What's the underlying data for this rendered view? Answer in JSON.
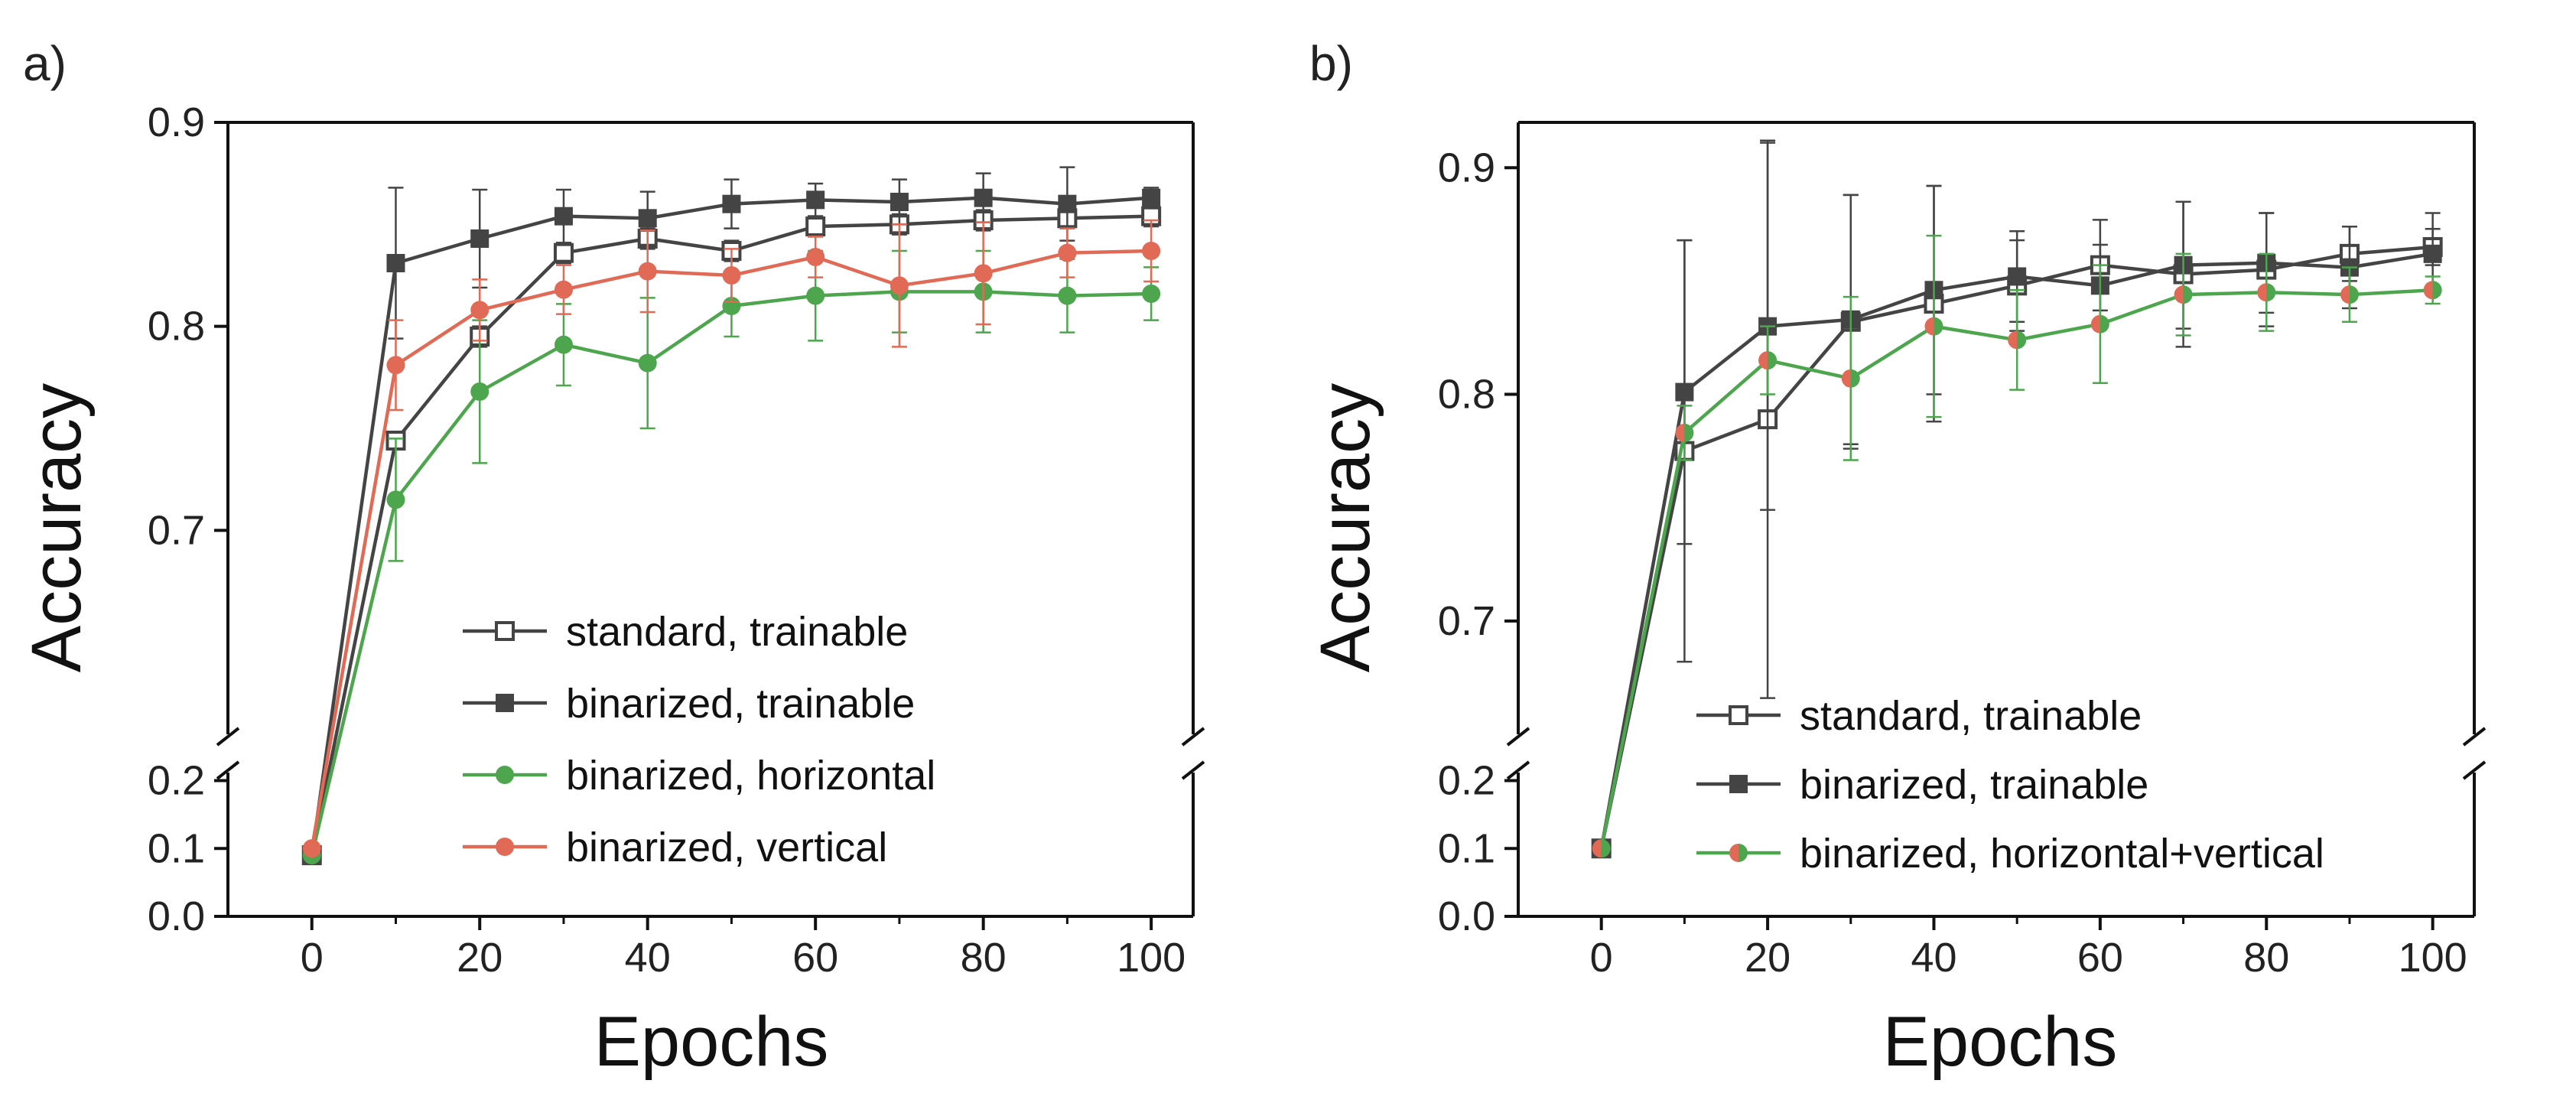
{
  "colors": {
    "standard_trainable": "#444444",
    "binarized_trainable": "#444444",
    "binarized_horizontal": "#4da64d",
    "binarized_vertical": "#e06a55",
    "axis": "#111111"
  },
  "chart_data": [
    {
      "panel": "a)",
      "type": "line",
      "xlabel": "Epochs",
      "ylabel": "Accuracy",
      "xlim": [
        -10,
        105
      ],
      "x_ticks": [
        0,
        20,
        40,
        60,
        80,
        100
      ],
      "y_axis_break": {
        "lower_range": [
          0.0,
          0.24
        ],
        "upper_range": [
          0.6,
          0.9
        ],
        "lower_ticks": [
          0.0,
          0.1,
          0.2
        ],
        "upper_ticks": [
          0.7,
          0.8,
          0.9
        ]
      },
      "legend_position": "lower-right",
      "x": [
        0,
        10,
        20,
        30,
        40,
        50,
        60,
        70,
        80,
        90,
        100
      ],
      "series": [
        {
          "name": "standard, trainable",
          "color": "#444444",
          "marker": "open-square",
          "values": [
            0.09,
            0.744,
            0.795,
            0.836,
            0.843,
            0.837,
            0.849,
            0.85,
            0.852,
            0.853,
            0.854
          ],
          "errors": [
            0.0,
            0.0,
            0.005,
            0.005,
            0.005,
            0.005,
            0.005,
            0.005,
            0.005,
            0.005,
            0.005
          ]
        },
        {
          "name": "binarized, trainable",
          "color": "#444444",
          "marker": "filled-square",
          "values": [
            0.09,
            0.831,
            0.843,
            0.854,
            0.853,
            0.86,
            0.862,
            0.861,
            0.863,
            0.86,
            0.863
          ],
          "errors": [
            0.0,
            0.037,
            0.024,
            0.013,
            0.013,
            0.012,
            0.008,
            0.011,
            0.012,
            0.018,
            0.005
          ]
        },
        {
          "name": "binarized, horizontal",
          "color": "#4da64d",
          "marker": "filled-circle",
          "values": [
            0.09,
            0.715,
            0.768,
            0.791,
            0.782,
            0.81,
            0.815,
            0.817,
            0.817,
            0.815,
            0.816
          ],
          "errors": [
            0.0,
            0.03,
            0.035,
            0.02,
            0.032,
            0.015,
            0.022,
            0.02,
            0.02,
            0.018,
            0.013
          ]
        },
        {
          "name": "binarized, vertical",
          "color": "#e06a55",
          "marker": "filled-circle",
          "values": [
            0.1,
            0.781,
            0.808,
            0.818,
            0.827,
            0.825,
            0.834,
            0.82,
            0.826,
            0.836,
            0.837
          ],
          "errors": [
            0.0,
            0.022,
            0.015,
            0.012,
            0.02,
            0.013,
            0.01,
            0.03,
            0.025,
            0.012,
            0.015
          ]
        }
      ]
    },
    {
      "panel": "b)",
      "type": "line",
      "xlabel": "Epochs",
      "ylabel": "Accuracy",
      "xlim": [
        -10,
        105
      ],
      "x_ticks": [
        0,
        20,
        40,
        60,
        80,
        100
      ],
      "y_axis_break": {
        "lower_range": [
          0.0,
          0.24
        ],
        "upper_range": [
          0.65,
          0.92
        ],
        "lower_ticks": [
          0.0,
          0.1,
          0.2
        ],
        "upper_ticks": [
          0.7,
          0.8,
          0.9
        ]
      },
      "legend_position": "lower-right",
      "x": [
        0,
        10,
        20,
        30,
        40,
        50,
        60,
        70,
        80,
        90,
        100
      ],
      "series": [
        {
          "name": "standard, trainable",
          "color": "#444444",
          "marker": "open-square",
          "values": [
            0.1,
            0.775,
            0.789,
            0.832,
            0.84,
            0.848,
            0.857,
            0.853,
            0.855,
            0.862,
            0.865
          ],
          "errors": [
            0.0,
            0.093,
            0.123,
            0.056,
            0.052,
            0.02,
            0.02,
            0.032,
            0.025,
            0.012,
            0.008
          ]
        },
        {
          "name": "binarized, trainable",
          "color": "#444444",
          "marker": "filled-square",
          "values": [
            0.1,
            0.801,
            0.83,
            0.833,
            0.846,
            0.852,
            0.848,
            0.857,
            0.858,
            0.856,
            0.862
          ],
          "errors": [
            0.0,
            0.067,
            0.081,
            0.055,
            0.046,
            0.02,
            0.018,
            0.028,
            0.022,
            0.018,
            0.018
          ]
        },
        {
          "name": "binarized, horizontal+vertical",
          "color": "#4da64d",
          "color2": "#e06a55",
          "marker": "half-circle",
          "values": [
            0.1,
            0.783,
            0.815,
            0.807,
            0.83,
            0.824,
            0.831,
            0.844,
            0.845,
            0.844,
            0.846
          ],
          "errors": [
            0.0,
            0.012,
            0.015,
            0.036,
            0.04,
            0.022,
            0.026,
            0.018,
            0.017,
            0.012,
            0.006
          ]
        }
      ]
    }
  ]
}
